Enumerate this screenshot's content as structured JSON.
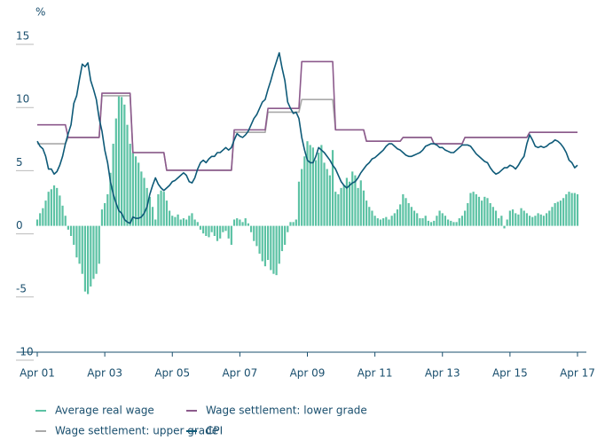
{
  "chart_data": {
    "type": "bar-line",
    "y_label": "%",
    "categories": [
      "Apr 01",
      null,
      null,
      null,
      null,
      null,
      null,
      null,
      null,
      null,
      null,
      null,
      null,
      null,
      null,
      null,
      null,
      null,
      null,
      null,
      null,
      null,
      null,
      null,
      "Apr 03",
      null,
      null,
      null,
      null,
      null,
      null,
      null,
      null,
      null,
      null,
      null,
      null,
      null,
      null,
      null,
      null,
      null,
      null,
      null,
      null,
      null,
      null,
      null,
      "Apr 05",
      null,
      null,
      null,
      null,
      null,
      null,
      null,
      null,
      null,
      null,
      null,
      null,
      null,
      null,
      null,
      null,
      null,
      null,
      null,
      null,
      null,
      null,
      null,
      "Apr 07",
      null,
      null,
      null,
      null,
      null,
      null,
      null,
      null,
      null,
      null,
      null,
      null,
      null,
      null,
      null,
      null,
      null,
      null,
      null,
      null,
      null,
      null,
      null,
      "Apr 09",
      null,
      null,
      null,
      null,
      null,
      null,
      null,
      null,
      null,
      null,
      null,
      null,
      null,
      null,
      null,
      null,
      null,
      null,
      null,
      null,
      null,
      null,
      null,
      "Apr 11",
      null,
      null,
      null,
      null,
      null,
      null,
      null,
      null,
      null,
      null,
      null,
      null,
      null,
      null,
      null,
      null,
      null,
      null,
      null,
      null,
      null,
      null,
      null,
      "Apr 13",
      null,
      null,
      null,
      null,
      null,
      null,
      null,
      null,
      null,
      null,
      null,
      null,
      null,
      null,
      null,
      null,
      null,
      null,
      null,
      null,
      null,
      null,
      null,
      "Apr 15",
      null,
      null,
      null,
      null,
      null,
      null,
      null,
      null,
      null,
      null,
      null,
      null,
      null,
      null,
      null,
      null,
      null,
      null,
      null,
      null,
      null,
      null,
      null,
      "Apr 17"
    ],
    "series": [
      {
        "name": "Average real wage",
        "kind": "bar",
        "color": "#5cc2a4",
        "values": [
          0.5,
          1.0,
          1.4,
          2.0,
          2.7,
          2.9,
          3.2,
          3.0,
          2.4,
          1.6,
          0.8,
          -0.3,
          -0.8,
          -1.5,
          -2.5,
          -3.0,
          -3.8,
          -5.2,
          -5.4,
          -4.8,
          -4.2,
          -3.8,
          -3.0,
          1.3,
          1.8,
          2.5,
          4.2,
          6.5,
          8.5,
          10.3,
          10.2,
          9.6,
          8.0,
          6.5,
          5.8,
          5.5,
          5.0,
          4.3,
          3.8,
          3.0,
          2.3,
          1.5,
          0.5,
          2.5,
          2.8,
          2.7,
          2.0,
          1.2,
          0.8,
          0.7,
          0.9,
          0.5,
          0.6,
          0.5,
          0.8,
          1.0,
          0.5,
          0.3,
          -0.3,
          -0.6,
          -0.8,
          -0.9,
          -0.5,
          -0.8,
          -1.2,
          -1.0,
          -0.5,
          -0.4,
          -1.0,
          -1.5,
          0.5,
          0.6,
          0.5,
          0.3,
          0.6,
          0.2,
          -0.5,
          -1.2,
          -1.6,
          -2.2,
          -2.8,
          -3.2,
          -2.7,
          -3.5,
          -3.8,
          -3.9,
          -3.0,
          -2.0,
          -1.5,
          -0.5,
          0.3,
          0.3,
          0.5,
          3.5,
          4.5,
          5.5,
          6.7,
          6.4,
          6.2,
          5.2,
          5.8,
          6.4,
          5.0,
          4.5,
          4.0,
          6.0,
          2.7,
          2.5,
          3.0,
          3.2,
          3.8,
          3.5,
          4.3,
          4.0,
          3.0,
          3.6,
          2.8,
          2.0,
          1.5,
          1.2,
          0.8,
          0.6,
          0.5,
          0.6,
          0.7,
          0.5,
          0.8,
          1.0,
          1.3,
          1.7,
          2.5,
          2.2,
          1.8,
          1.5,
          1.2,
          1.0,
          0.6,
          0.6,
          0.8,
          0.4,
          0.3,
          0.4,
          0.8,
          1.2,
          1.0,
          0.8,
          0.5,
          0.4,
          0.3,
          0.3,
          0.6,
          0.8,
          1.2,
          1.8,
          2.6,
          2.7,
          2.5,
          2.3,
          2.0,
          2.3,
          2.2,
          1.8,
          1.5,
          1.2,
          0.6,
          0.8,
          -0.2,
          0.5,
          1.2,
          1.3,
          1.0,
          0.9,
          1.4,
          1.2,
          1.0,
          0.8,
          0.7,
          0.8,
          1.0,
          0.9,
          0.8,
          1.0,
          1.2,
          1.5,
          1.8,
          1.9,
          2.0,
          2.2,
          2.5,
          2.7,
          2.6,
          2.6,
          2.5
        ]
      },
      {
        "name": "Wage settlement: upper grade",
        "kind": "line",
        "color": "#a9a9a9",
        "values": [
          6.5,
          6.5,
          6.5,
          6.5,
          6.5,
          6.5,
          6.5,
          6.5,
          6.5,
          6.5,
          6.5,
          7,
          7,
          7,
          7,
          7,
          7,
          7,
          7,
          7,
          7,
          7,
          7,
          10.3,
          10.3,
          10.3,
          10.3,
          10.3,
          10.3,
          10.3,
          10.3,
          10.3,
          10.3,
          10.3,
          5.8,
          5.8,
          5.8,
          5.8,
          5.8,
          5.8,
          5.8,
          5.8,
          5.8,
          5.8,
          5.8,
          5.8,
          4.4,
          4.4,
          4.4,
          4.4,
          4.4,
          4.4,
          4.4,
          4.4,
          4.4,
          4.4,
          4.4,
          4.4,
          4.4,
          4.4,
          4.4,
          4.4,
          4.4,
          4.4,
          4.4,
          4.4,
          4.4,
          4.4,
          4.4,
          4.4,
          7.4,
          7.4,
          7.4,
          7.4,
          7.4,
          7.4,
          7.4,
          7.4,
          7.4,
          7.4,
          7.4,
          7.4,
          9.0,
          9.0,
          9.0,
          9.0,
          9.0,
          9.0,
          9.0,
          9.0,
          9.0,
          9.0,
          9.0,
          9.0,
          10,
          10,
          10,
          10,
          10,
          10,
          10,
          10,
          10,
          10,
          10,
          10,
          7.6,
          7.6,
          7.6,
          7.6,
          7.6,
          7.6,
          7.6,
          7.6,
          7.6,
          7.6,
          7.6,
          6.7,
          6.7,
          6.7,
          6.7,
          6.7,
          6.7,
          6.7,
          6.7,
          6.7,
          6.7,
          6.7,
          6.7,
          6.7,
          7.0,
          7.0,
          7.0,
          7.0,
          7.0,
          7.0,
          7.0,
          7.0,
          7.0,
          7.0,
          7.0,
          6.5,
          6.5,
          6.5,
          6.5,
          6.5,
          6.5,
          6.5,
          6.5,
          6.5,
          6.5,
          6.5,
          7.0,
          7.0,
          7.0,
          7.0,
          7.0,
          7.0,
          7.0,
          7.0,
          7.0,
          7.0,
          7.0,
          7.0,
          7.0,
          7.0,
          7.0,
          7.0,
          7.0,
          7.0,
          7.0,
          7.0,
          7.0,
          7.0,
          7.0,
          7.4,
          7.4,
          7.4,
          7.4,
          7.4,
          7.4,
          7.4,
          7.4,
          7.4,
          7.4,
          7.4,
          7.4,
          7.4,
          7.4,
          7.4,
          7.4,
          7.4,
          7.4
        ]
      },
      {
        "name": "Wage settlement: lower grade",
        "kind": "line",
        "color": "#8c5a8c",
        "values": [
          8,
          8,
          8,
          8,
          8,
          8,
          8,
          8,
          8,
          8,
          8,
          7,
          7,
          7,
          7,
          7,
          7,
          7,
          7,
          7,
          7,
          7,
          7,
          10.5,
          10.5,
          10.5,
          10.5,
          10.5,
          10.5,
          10.5,
          10.5,
          10.5,
          10.5,
          10.5,
          5.8,
          5.8,
          5.8,
          5.8,
          5.8,
          5.8,
          5.8,
          5.8,
          5.8,
          5.8,
          5.8,
          5.8,
          4.4,
          4.4,
          4.4,
          4.4,
          4.4,
          4.4,
          4.4,
          4.4,
          4.4,
          4.4,
          4.4,
          4.4,
          4.4,
          4.4,
          4.4,
          4.4,
          4.4,
          4.4,
          4.4,
          4.4,
          4.4,
          4.4,
          4.4,
          4.4,
          7.6,
          7.6,
          7.6,
          7.6,
          7.6,
          7.6,
          7.6,
          7.6,
          7.6,
          7.6,
          7.6,
          7.6,
          9.3,
          9.3,
          9.3,
          9.3,
          9.3,
          9.3,
          9.3,
          9.3,
          9.3,
          9.3,
          9.3,
          9.3,
          13,
          13,
          13,
          13,
          13,
          13,
          13,
          13,
          13,
          13,
          13,
          13,
          7.6,
          7.6,
          7.6,
          7.6,
          7.6,
          7.6,
          7.6,
          7.6,
          7.6,
          7.6,
          7.6,
          6.7,
          6.7,
          6.7,
          6.7,
          6.7,
          6.7,
          6.7,
          6.7,
          6.7,
          6.7,
          6.7,
          6.7,
          6.7,
          7.0,
          7.0,
          7.0,
          7.0,
          7.0,
          7.0,
          7.0,
          7.0,
          7.0,
          7.0,
          7.0,
          6.5,
          6.5,
          6.5,
          6.5,
          6.5,
          6.5,
          6.5,
          6.5,
          6.5,
          6.5,
          6.5,
          7.0,
          7.0,
          7.0,
          7.0,
          7.0,
          7.0,
          7.0,
          7.0,
          7.0,
          7.0,
          7.0,
          7.0,
          7.0,
          7.0,
          7.0,
          7.0,
          7.0,
          7.0,
          7.0,
          7.0,
          7.0,
          7.0,
          7.0,
          7.4,
          7.4,
          7.4,
          7.4,
          7.4,
          7.4,
          7.4,
          7.4,
          7.4,
          7.4,
          7.4,
          7.4,
          7.4,
          7.4,
          7.4,
          7.4,
          7.4,
          7.4
        ]
      },
      {
        "name": "CPI",
        "kind": "line",
        "color": "#0e5a78",
        "values": [
          6.7,
          6.3,
          6.1,
          5.5,
          4.5,
          4.5,
          4.1,
          4.3,
          4.8,
          5.5,
          6.5,
          7.3,
          8.0,
          9.7,
          10.3,
          11.6,
          12.8,
          12.6,
          12.9,
          11.5,
          10.8,
          10.0,
          8.5,
          7.5,
          6.0,
          5.0,
          3.5,
          2.5,
          1.8,
          1.2,
          1.0,
          0.5,
          0.3,
          0.2,
          0.7,
          0.6,
          0.6,
          0.7,
          1.0,
          1.5,
          2.5,
          3.2,
          3.8,
          3.3,
          3.0,
          2.8,
          3.0,
          3.2,
          3.5,
          3.6,
          3.8,
          4.0,
          4.2,
          4.0,
          3.5,
          3.4,
          3.8,
          4.5,
          5.0,
          5.2,
          5.0,
          5.3,
          5.5,
          5.5,
          5.8,
          5.8,
          6.0,
          6.2,
          6.0,
          6.2,
          6.8,
          7.3,
          7.1,
          7.0,
          7.2,
          7.5,
          8.0,
          8.5,
          8.8,
          9.3,
          9.8,
          10.0,
          10.8,
          11.5,
          12.3,
          13.0,
          13.7,
          12.5,
          11.5,
          9.8,
          9.3,
          8.9,
          9.0,
          8.5,
          7.0,
          6.0,
          5.2,
          5.0,
          5.0,
          5.5,
          6.2,
          6.0,
          5.8,
          5.5,
          5.2,
          4.8,
          4.5,
          4.0,
          3.5,
          3.2,
          3.0,
          3.2,
          3.4,
          3.5,
          3.8,
          4.2,
          4.5,
          4.8,
          5.0,
          5.3,
          5.4,
          5.6,
          5.8,
          6.0,
          6.3,
          6.5,
          6.5,
          6.3,
          6.1,
          6.0,
          5.8,
          5.6,
          5.5,
          5.5,
          5.6,
          5.7,
          5.8,
          6.0,
          6.3,
          6.4,
          6.5,
          6.5,
          6.4,
          6.2,
          6.2,
          6.0,
          5.9,
          5.8,
          5.8,
          6.0,
          6.2,
          6.4,
          6.4,
          6.4,
          6.3,
          6.0,
          5.7,
          5.5,
          5.3,
          5.1,
          5.0,
          4.6,
          4.3,
          4.1,
          4.2,
          4.4,
          4.6,
          4.6,
          4.8,
          4.7,
          4.5,
          4.8,
          5.2,
          5.5,
          6.5,
          7.2,
          6.8,
          6.3,
          6.2,
          6.3,
          6.2,
          6.3,
          6.5,
          6.6,
          6.8,
          6.7,
          6.5,
          6.2,
          5.8,
          5.2,
          5.0,
          4.6,
          4.8
        ]
      }
    ],
    "ylim": [
      -10,
      15
    ],
    "yticks": [
      -10,
      -5,
      0,
      5,
      10,
      15
    ],
    "grid": false,
    "legend": "bottom"
  }
}
